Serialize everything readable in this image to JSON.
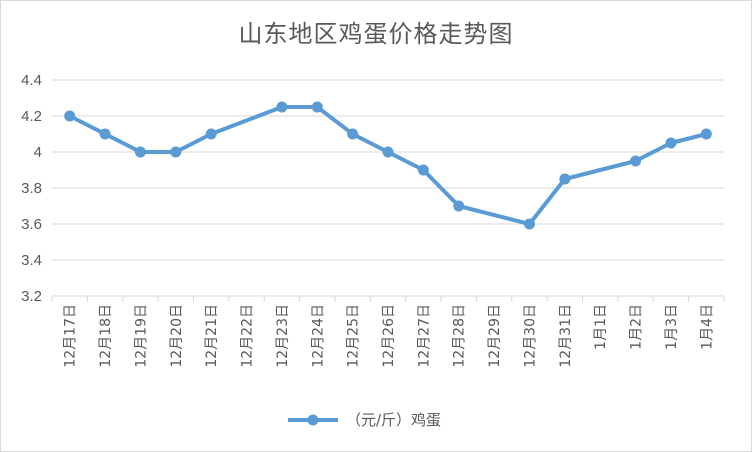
{
  "chart_data": {
    "type": "line",
    "title": "山东地区鸡蛋价格走势图",
    "categories": [
      "12月17日",
      "12月18日",
      "12月19日",
      "12月20日",
      "12月21日",
      "12月22日",
      "12月23日",
      "12月24日",
      "12月25日",
      "12月26日",
      "12月27日",
      "12月28日",
      "12月29日",
      "12月30日",
      "12月31日",
      "1月1日",
      "1月2日",
      "1月3日",
      "1月4日"
    ],
    "series": [
      {
        "name": "（元/斤）鸡蛋",
        "color": "#5b9bd5",
        "values": [
          4.2,
          4.1,
          4.0,
          4.0,
          4.1,
          null,
          4.25,
          4.25,
          4.1,
          4.0,
          3.9,
          3.7,
          null,
          3.6,
          3.85,
          null,
          3.95,
          4.05,
          4.1
        ]
      }
    ],
    "ylim": [
      3.2,
      4.4
    ],
    "yticks": [
      "3.2",
      "3.4",
      "3.6",
      "3.8",
      "4",
      "4.2",
      "4.4"
    ],
    "grid": true,
    "legend": "bottom",
    "xlabel": "",
    "ylabel": ""
  }
}
